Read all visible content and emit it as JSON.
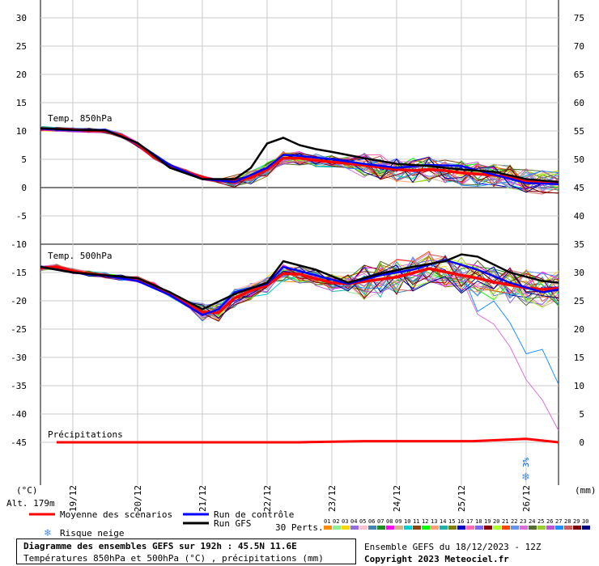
{
  "chart_data": {
    "type": "line",
    "title": "Diagramme des ensembles GEFS sur 192h : 45.5N 11.6E",
    "subtitle": "Températures 850hPa et 500hPa (°C) , précipitations (mm)",
    "run_info": "Ensemble GEFS du 18/12/2023 - 12Z",
    "copyright": "Copyright 2023 Meteociel.fr",
    "altitude": "Alt. 179m",
    "left_axis_unit": "(°C)",
    "right_axis_unit": "(mm)",
    "y_left_ticks": [
      30,
      25,
      20,
      15,
      10,
      5,
      0,
      -5,
      -10,
      -15,
      -20,
      -25,
      -30,
      -35,
      -40,
      -45
    ],
    "y_right_ticks": [
      75,
      70,
      65,
      60,
      55,
      50,
      45,
      40,
      35,
      30,
      25,
      20,
      15,
      10,
      5,
      0
    ],
    "ylim": [
      -45,
      30
    ],
    "x_dates": [
      "19/12",
      "20/12",
      "21/12",
      "22/12",
      "23/12",
      "24/12",
      "25/12",
      "26/12"
    ],
    "x_range_hours": [
      0,
      192
    ],
    "panel_labels": {
      "t850": "Temp. 850hPa",
      "t500": "Temp. 500hPa",
      "precip": "Précipitations"
    },
    "snow_risk": {
      "hour": 180,
      "label": "3%"
    },
    "series": [
      {
        "name": "Moyenne des scénarios",
        "color": "#ff0000",
        "t850": [
          [
            0,
            10.4
          ],
          [
            6,
            10.3
          ],
          [
            12,
            10.2
          ],
          [
            18,
            10.1
          ],
          [
            24,
            10.0
          ],
          [
            30,
            9.2
          ],
          [
            36,
            7.6
          ],
          [
            42,
            5.4
          ],
          [
            48,
            3.8
          ],
          [
            54,
            2.8
          ],
          [
            60,
            1.8
          ],
          [
            66,
            1.2
          ],
          [
            72,
            1.2
          ],
          [
            78,
            1.8
          ],
          [
            84,
            3.2
          ],
          [
            90,
            5.2
          ],
          [
            96,
            5.2
          ],
          [
            102,
            4.8
          ],
          [
            108,
            4.5
          ],
          [
            114,
            4.3
          ],
          [
            120,
            3.9
          ],
          [
            126,
            3.6
          ],
          [
            132,
            3.2
          ],
          [
            138,
            3.0
          ],
          [
            144,
            3.2
          ],
          [
            150,
            3.0
          ],
          [
            156,
            2.6
          ],
          [
            162,
            2.4
          ],
          [
            168,
            2.2
          ],
          [
            174,
            1.8
          ],
          [
            180,
            1.2
          ],
          [
            186,
            0.9
          ],
          [
            192,
            0.8
          ]
        ],
        "t500": [
          [
            0,
            -14.2
          ],
          [
            6,
            -14.0
          ],
          [
            12,
            -14.8
          ],
          [
            18,
            -15.2
          ],
          [
            24,
            -15.5
          ],
          [
            30,
            -15.9
          ],
          [
            36,
            -16.2
          ],
          [
            42,
            -17.2
          ],
          [
            48,
            -18.8
          ],
          [
            54,
            -20.5
          ],
          [
            60,
            -22.0
          ],
          [
            66,
            -22.1
          ],
          [
            72,
            -19.5
          ],
          [
            78,
            -18.2
          ],
          [
            84,
            -17.3
          ],
          [
            90,
            -15.2
          ],
          [
            96,
            -15.3
          ],
          [
            102,
            -16.1
          ],
          [
            108,
            -16.8
          ],
          [
            114,
            -17.0
          ],
          [
            120,
            -16.6
          ],
          [
            126,
            -16.2
          ],
          [
            132,
            -15.8
          ],
          [
            138,
            -15.1
          ],
          [
            144,
            -14.3
          ],
          [
            150,
            -14.9
          ],
          [
            156,
            -15.5
          ],
          [
            162,
            -16.0
          ],
          [
            168,
            -16.7
          ],
          [
            174,
            -17.2
          ],
          [
            180,
            -17.7
          ],
          [
            186,
            -18.0
          ],
          [
            192,
            -17.8
          ]
        ],
        "precip": [
          [
            6,
            0
          ],
          [
            48,
            0
          ],
          [
            96,
            0
          ],
          [
            120,
            0.1
          ],
          [
            160,
            0.1
          ],
          [
            180,
            0.3
          ],
          [
            192,
            0
          ]
        ]
      },
      {
        "name": "Run de contrôle",
        "color": "#0000ff",
        "t850": [
          [
            0,
            10.4
          ],
          [
            12,
            10.1
          ],
          [
            24,
            10.2
          ],
          [
            36,
            7.8
          ],
          [
            48,
            4.0
          ],
          [
            60,
            1.5
          ],
          [
            72,
            1.0
          ],
          [
            84,
            3.5
          ],
          [
            90,
            5.8
          ],
          [
            96,
            5.6
          ],
          [
            108,
            5.0
          ],
          [
            120,
            4.2
          ],
          [
            132,
            3.5
          ],
          [
            144,
            4.0
          ],
          [
            156,
            3.8
          ],
          [
            168,
            2.3
          ],
          [
            180,
            0.8
          ],
          [
            192,
            0.6
          ]
        ],
        "t500": [
          [
            0,
            -14.0
          ],
          [
            12,
            -15.0
          ],
          [
            24,
            -15.6
          ],
          [
            36,
            -16.5
          ],
          [
            48,
            -19.0
          ],
          [
            60,
            -22.5
          ],
          [
            66,
            -21.5
          ],
          [
            72,
            -18.5
          ],
          [
            84,
            -17.0
          ],
          [
            90,
            -14.0
          ],
          [
            102,
            -15.5
          ],
          [
            114,
            -17.0
          ],
          [
            126,
            -15.5
          ],
          [
            138,
            -14.5
          ],
          [
            150,
            -12.8
          ],
          [
            162,
            -14.5
          ],
          [
            174,
            -16.8
          ],
          [
            186,
            -18.5
          ],
          [
            192,
            -18.0
          ]
        ]
      },
      {
        "name": "Run GFS",
        "color": "#000000",
        "t850": [
          [
            0,
            10.5
          ],
          [
            12,
            10.2
          ],
          [
            24,
            10.1
          ],
          [
            36,
            7.9
          ],
          [
            48,
            3.5
          ],
          [
            60,
            1.5
          ],
          [
            72,
            1.5
          ],
          [
            78,
            3.5
          ],
          [
            84,
            7.8
          ],
          [
            90,
            8.8
          ],
          [
            96,
            7.5
          ],
          [
            102,
            6.8
          ],
          [
            108,
            6.3
          ],
          [
            120,
            5.2
          ],
          [
            132,
            4.2
          ],
          [
            144,
            3.8
          ],
          [
            156,
            3.2
          ],
          [
            168,
            2.8
          ],
          [
            180,
            1.5
          ],
          [
            192,
            1.0
          ]
        ],
        "t500": [
          [
            0,
            -14.0
          ],
          [
            12,
            -15.0
          ],
          [
            24,
            -15.5
          ],
          [
            36,
            -16.0
          ],
          [
            48,
            -18.5
          ],
          [
            60,
            -21.5
          ],
          [
            72,
            -18.8
          ],
          [
            84,
            -16.8
          ],
          [
            90,
            -13.0
          ],
          [
            102,
            -14.5
          ],
          [
            114,
            -16.8
          ],
          [
            126,
            -15.2
          ],
          [
            138,
            -14.0
          ],
          [
            150,
            -13.0
          ],
          [
            156,
            -11.8
          ],
          [
            162,
            -12.2
          ],
          [
            174,
            -15.0
          ],
          [
            186,
            -16.5
          ],
          [
            192,
            -16.8
          ]
        ]
      }
    ],
    "members_count_label": "30 Perts.",
    "member_labels": [
      "01",
      "02",
      "03",
      "04",
      "05",
      "06",
      "07",
      "08",
      "09",
      "10",
      "11",
      "12",
      "13",
      "14",
      "15",
      "16",
      "17",
      "18",
      "19",
      "20",
      "21",
      "22",
      "23",
      "24",
      "25",
      "26",
      "27",
      "28",
      "29",
      "30"
    ],
    "member_colors": [
      "#ff8c00",
      "#90ee90",
      "#ffd700",
      "#9370db",
      "#ffc0cb",
      "#4682b4",
      "#228b22",
      "#ff00ff",
      "#d2b48c",
      "#00ced1",
      "#8b4513",
      "#00ff00",
      "#ffa07a",
      "#20b2aa",
      "#808000",
      "#0000cd",
      "#ff69b4",
      "#7b68ee",
      "#8b0000",
      "#adff2f",
      "#ff4500",
      "#6495ed",
      "#da70d6",
      "#556b2f",
      "#9acd32",
      "#ba55d3",
      "#1e90ff",
      "#cd5c5c",
      "#800000",
      "#00008b"
    ]
  },
  "legend": {
    "mean_label": "Moyenne des scénarios",
    "control_label": "Run de contrôle",
    "gfs_label": "Run GFS",
    "snow_label": "Risque neige",
    "perts_label": "30 Perts."
  }
}
